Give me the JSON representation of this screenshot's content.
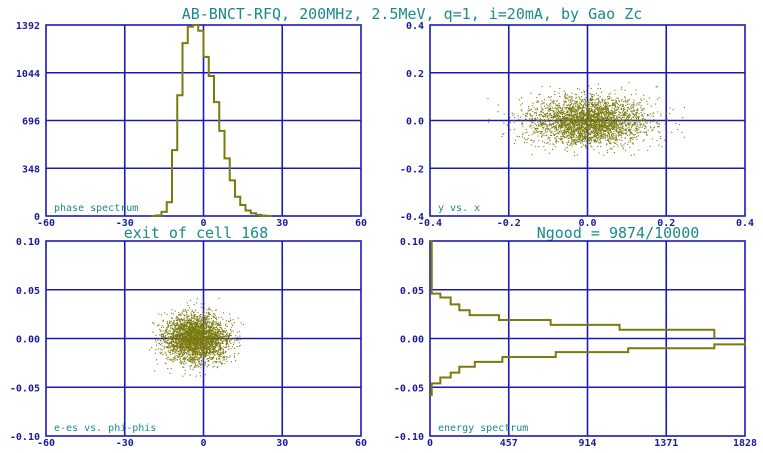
{
  "colors": {
    "frame": "#1b1bb4",
    "data": "#7a7a10",
    "title": "#1a8a8a",
    "ticks": "#1b1b9a"
  },
  "header": {
    "title": "AB-BNCT-RFQ, 200MHz, 2.5MeV, q=1, i=20mA, by Gao Zc",
    "left_caption": "exit of cell 168",
    "right_caption": "Ngood = 9874/10000"
  },
  "chart_data": [
    {
      "id": "phase",
      "type": "line",
      "label": "phase spectrum",
      "xlim": [
        -60,
        60
      ],
      "ylim": [
        0,
        1392
      ],
      "xticks": [
        "-60",
        "-30",
        "0",
        "30",
        "60"
      ],
      "yticks": [
        "0",
        "348",
        "696",
        "1044",
        "1392"
      ],
      "x": [
        -20,
        -18,
        -16,
        -14,
        -12,
        -10,
        -8,
        -6,
        -4,
        -2,
        0,
        2,
        4,
        6,
        8,
        10,
        12,
        14,
        16,
        18,
        20,
        22,
        24,
        26
      ],
      "values": [
        0,
        5,
        30,
        100,
        480,
        880,
        1260,
        1380,
        1392,
        1350,
        1160,
        1020,
        830,
        620,
        420,
        260,
        140,
        80,
        40,
        20,
        8,
        3,
        0,
        0
      ]
    },
    {
      "id": "yx",
      "type": "scatter",
      "label": "y vs. x",
      "xlim": [
        -0.4,
        0.4
      ],
      "ylim": [
        -0.4,
        0.4
      ],
      "xticks": [
        "-0.4",
        "-0.2",
        "0.0",
        "0.2",
        "0.4"
      ],
      "yticks": [
        "-0.4",
        "-0.2",
        "0.0",
        "0.2",
        "0.4"
      ],
      "center": [
        0.0,
        0.0
      ],
      "spread": [
        0.075,
        0.05
      ],
      "extent": [
        0.27,
        0.17
      ]
    },
    {
      "id": "ephi",
      "type": "scatter",
      "label": "e-es vs. phi-phis",
      "xlim": [
        -60,
        60
      ],
      "ylim": [
        -0.1,
        0.1
      ],
      "xticks": [
        "-60",
        "-30",
        "0",
        "30",
        "60"
      ],
      "yticks": [
        "-0.10",
        "-0.05",
        "0.00",
        "0.05",
        "0.10"
      ],
      "center": [
        -3,
        0.0
      ],
      "spread": [
        6,
        0.012
      ],
      "extent": [
        18,
        0.045
      ]
    },
    {
      "id": "energy",
      "type": "line",
      "label": "energy spectrum",
      "xlim": [
        0,
        1828
      ],
      "ylim": [
        -0.1,
        0.1
      ],
      "xticks": [
        "0",
        "457",
        "914",
        "1371",
        "1828"
      ],
      "yticks": [
        "-0.10",
        "-0.05",
        "0.00",
        "0.05",
        "0.10"
      ],
      "upper": {
        "x": [
          0,
          10,
          60,
          120,
          170,
          230,
          400,
          700,
          1100,
          1650,
          1650
        ],
        "y": [
          0.1,
          0.046,
          0.042,
          0.035,
          0.029,
          0.024,
          0.019,
          0.014,
          0.009,
          0.004,
          0.0
        ]
      },
      "lower": {
        "x": [
          0,
          10,
          60,
          120,
          170,
          260,
          420,
          730,
          1150,
          1650,
          1828
        ],
        "y": [
          -0.058,
          -0.046,
          -0.04,
          -0.035,
          -0.029,
          -0.024,
          -0.019,
          -0.014,
          -0.01,
          -0.006,
          -0.004
        ]
      }
    }
  ]
}
